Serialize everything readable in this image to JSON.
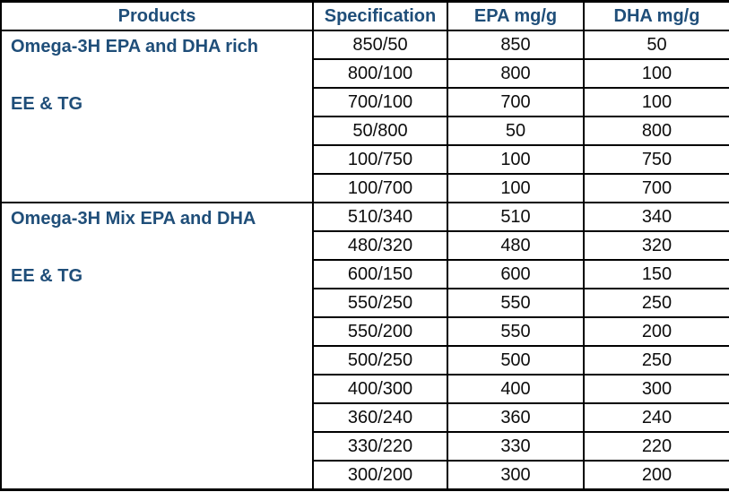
{
  "colors": {
    "header_text": "#1F4E79",
    "product_text": "#1F4E79",
    "body_text": "#0d0d0d",
    "border": "#000000",
    "background": "#ffffff"
  },
  "table": {
    "headers": [
      "Products",
      "Specification",
      "EPA mg/g",
      "DHA mg/g"
    ],
    "sections": [
      {
        "name": "Omega-3H EPA and DHA rich",
        "form": "EE & TG",
        "rows": [
          [
            "850/50",
            "850",
            "50"
          ],
          [
            "800/100",
            "800",
            "100"
          ],
          [
            "700/100",
            "700",
            "100"
          ],
          [
            "50/800",
            "50",
            "800"
          ],
          [
            "100/750",
            "100",
            "750"
          ],
          [
            "100/700",
            "100",
            "700"
          ]
        ]
      },
      {
        "name": "Omega-3H Mix EPA and DHA",
        "form": "EE & TG",
        "rows": [
          [
            "510/340",
            "510",
            "340"
          ],
          [
            "480/320",
            "480",
            "320"
          ],
          [
            "600/150",
            "600",
            "150"
          ],
          [
            "550/250",
            "550",
            "250"
          ],
          [
            "550/200",
            "550",
            "200"
          ],
          [
            "500/250",
            "500",
            "250"
          ],
          [
            "400/300",
            "400",
            "300"
          ],
          [
            "360/240",
            "360",
            "240"
          ],
          [
            "330/220",
            "330",
            "220"
          ],
          [
            "300/200",
            "300",
            "200"
          ]
        ]
      }
    ]
  }
}
